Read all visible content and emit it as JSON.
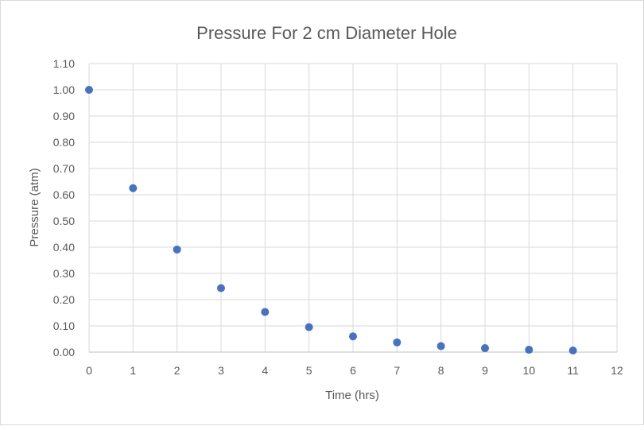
{
  "chart_data": {
    "type": "scatter",
    "title": "Pressure For 2 cm Diameter Hole",
    "xlabel": "Time (hrs)",
    "ylabel": "Pressure (atm)",
    "xlim": [
      0,
      12
    ],
    "ylim": [
      0,
      1.1
    ],
    "xticks": [
      "0",
      "1",
      "2",
      "3",
      "4",
      "5",
      "6",
      "7",
      "8",
      "9",
      "10",
      "11",
      "12"
    ],
    "yticks": [
      "0.00",
      "0.10",
      "0.20",
      "0.30",
      "0.40",
      "0.50",
      "0.60",
      "0.70",
      "0.80",
      "0.90",
      "1.00",
      "1.10"
    ],
    "grid": true,
    "series": [
      {
        "name": "Pressure",
        "color": "#4472C4",
        "x": [
          0,
          1,
          2,
          3,
          4,
          5,
          6,
          7,
          8,
          9,
          10,
          11
        ],
        "y": [
          1.0,
          0.625,
          0.391,
          0.244,
          0.153,
          0.095,
          0.06,
          0.037,
          0.023,
          0.015,
          0.009,
          0.006
        ]
      }
    ]
  }
}
